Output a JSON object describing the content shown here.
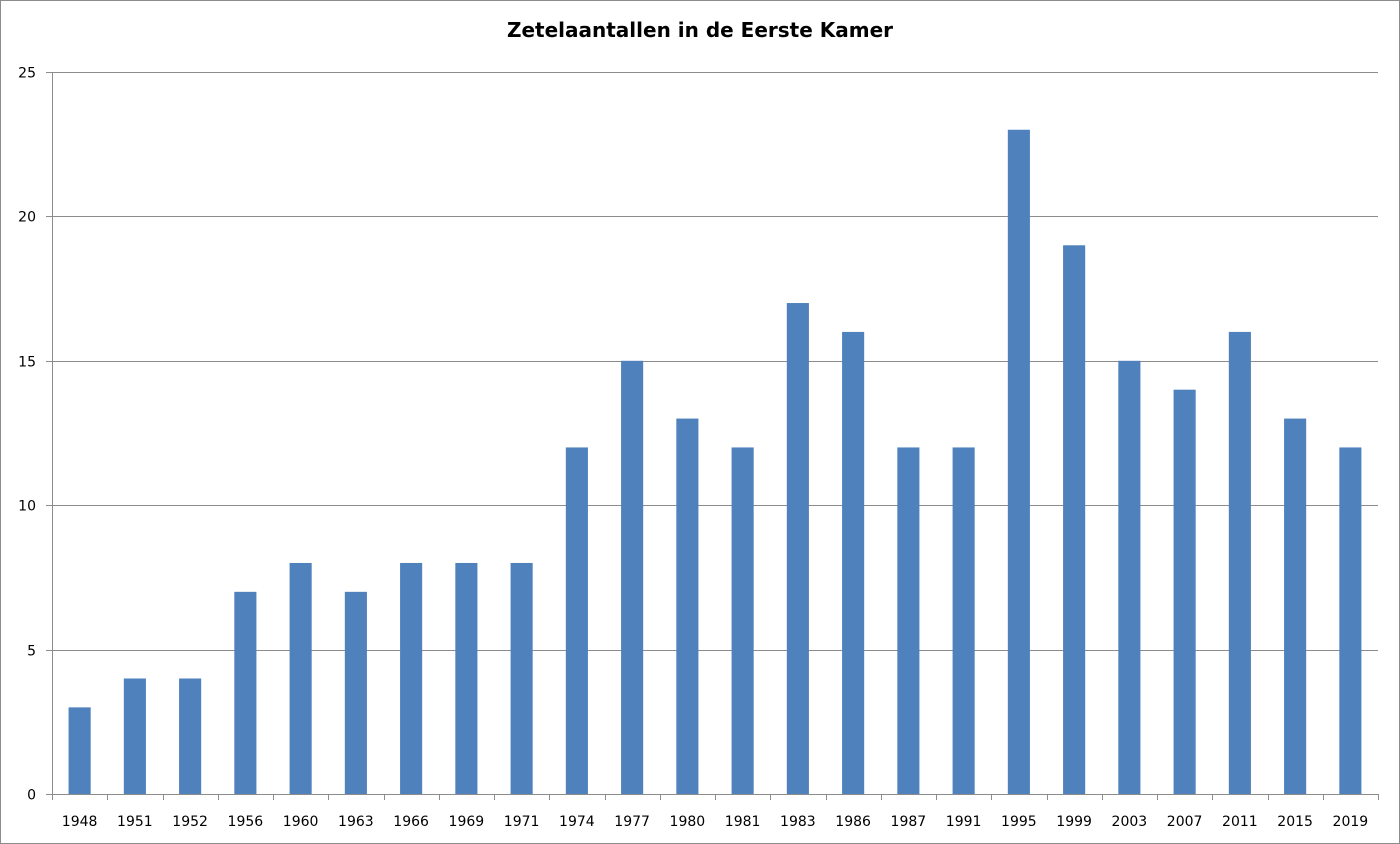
{
  "chart_data": {
    "type": "bar",
    "title": "Zetelaantallen in de Eerste Kamer",
    "xlabel": "",
    "ylabel": "",
    "categories": [
      "1948",
      "1951",
      "1952",
      "1956",
      "1960",
      "1963",
      "1966",
      "1969",
      "1971",
      "1974",
      "1977",
      "1980",
      "1981",
      "1983",
      "1986",
      "1987",
      "1991",
      "1995",
      "1999",
      "2003",
      "2007",
      "2011",
      "2015",
      "2019"
    ],
    "values": [
      3,
      4,
      4,
      7,
      8,
      7,
      8,
      8,
      8,
      12,
      15,
      13,
      12,
      17,
      16,
      12,
      12,
      23,
      19,
      15,
      14,
      16,
      13,
      12
    ],
    "ylim": [
      0,
      25
    ],
    "yticks": [
      0,
      5,
      10,
      15,
      20,
      25
    ],
    "grid": true,
    "legend": "none",
    "bar_color": "#4f81bd",
    "grid_color": "#8c8c8c"
  }
}
